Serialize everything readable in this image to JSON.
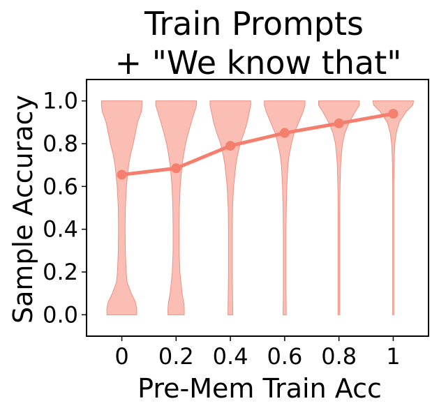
{
  "chart_data": {
    "type": "violin",
    "title": [
      "Train Prompts",
      "+ \"We know that\""
    ],
    "xlabel": "Pre-Mem Train Acc",
    "ylabel": "Sample Accuracy",
    "x_ticks": [
      "0",
      "0.2",
      "0.4",
      "0.6",
      "0.8",
      "1"
    ],
    "y_ticks": [
      "0.0",
      "0.2",
      "0.4",
      "0.6",
      "0.8",
      "1.0"
    ],
    "xlim": [
      -0.13,
      1.13
    ],
    "ylim": [
      -0.1,
      1.1
    ],
    "x": [
      0,
      0.2,
      0.4,
      0.6,
      0.8,
      1.0
    ],
    "mean_line": [
      0.655,
      0.685,
      0.79,
      0.85,
      0.895,
      0.94
    ],
    "violin_color": "#f9a89c",
    "violin_edge_color": "#f08f80",
    "line_color": "#f47f6e",
    "violins": [
      {
        "x": 0,
        "profile": [
          [
            0.0,
            0.055
          ],
          [
            0.03,
            0.055
          ],
          [
            0.06,
            0.05
          ],
          [
            0.1,
            0.035
          ],
          [
            0.15,
            0.02
          ],
          [
            0.2,
            0.016
          ],
          [
            0.3,
            0.013
          ],
          [
            0.4,
            0.012
          ],
          [
            0.5,
            0.013
          ],
          [
            0.6,
            0.017
          ],
          [
            0.7,
            0.025
          ],
          [
            0.75,
            0.032
          ],
          [
            0.8,
            0.042
          ],
          [
            0.85,
            0.05
          ],
          [
            0.9,
            0.058
          ],
          [
            0.95,
            0.072
          ],
          [
            0.98,
            0.075
          ],
          [
            1.0,
            0.075
          ]
        ]
      },
      {
        "x": 0.2,
        "profile": [
          [
            0.0,
            0.03
          ],
          [
            0.03,
            0.03
          ],
          [
            0.06,
            0.028
          ],
          [
            0.1,
            0.022
          ],
          [
            0.2,
            0.014
          ],
          [
            0.3,
            0.011
          ],
          [
            0.4,
            0.011
          ],
          [
            0.5,
            0.012
          ],
          [
            0.6,
            0.015
          ],
          [
            0.7,
            0.022
          ],
          [
            0.75,
            0.028
          ],
          [
            0.8,
            0.035
          ],
          [
            0.85,
            0.045
          ],
          [
            0.9,
            0.056
          ],
          [
            0.95,
            0.068
          ],
          [
            0.98,
            0.075
          ],
          [
            1.0,
            0.075
          ]
        ]
      },
      {
        "x": 0.4,
        "profile": [
          [
            0.0,
            0.009
          ],
          [
            0.1,
            0.008
          ],
          [
            0.2,
            0.007
          ],
          [
            0.3,
            0.007
          ],
          [
            0.4,
            0.007
          ],
          [
            0.5,
            0.008
          ],
          [
            0.6,
            0.012
          ],
          [
            0.7,
            0.02
          ],
          [
            0.75,
            0.027
          ],
          [
            0.8,
            0.036
          ],
          [
            0.85,
            0.05
          ],
          [
            0.9,
            0.062
          ],
          [
            0.95,
            0.07
          ],
          [
            0.98,
            0.075
          ],
          [
            1.0,
            0.075
          ]
        ]
      },
      {
        "x": 0.6,
        "profile": [
          [
            0.0,
            0.006
          ],
          [
            0.1,
            0.005
          ],
          [
            0.2,
            0.005
          ],
          [
            0.3,
            0.005
          ],
          [
            0.4,
            0.005
          ],
          [
            0.5,
            0.006
          ],
          [
            0.6,
            0.008
          ],
          [
            0.7,
            0.012
          ],
          [
            0.75,
            0.017
          ],
          [
            0.8,
            0.025
          ],
          [
            0.85,
            0.035
          ],
          [
            0.9,
            0.052
          ],
          [
            0.95,
            0.068
          ],
          [
            0.98,
            0.075
          ],
          [
            1.0,
            0.075
          ]
        ]
      },
      {
        "x": 0.8,
        "profile": [
          [
            0.0,
            0.003
          ],
          [
            0.2,
            0.003
          ],
          [
            0.4,
            0.003
          ],
          [
            0.5,
            0.003
          ],
          [
            0.6,
            0.004
          ],
          [
            0.7,
            0.006
          ],
          [
            0.75,
            0.009
          ],
          [
            0.8,
            0.013
          ],
          [
            0.85,
            0.022
          ],
          [
            0.9,
            0.038
          ],
          [
            0.95,
            0.06
          ],
          [
            0.98,
            0.075
          ],
          [
            1.0,
            0.075
          ]
        ]
      },
      {
        "x": 1.0,
        "profile": [
          [
            0.0,
            0.002
          ],
          [
            0.2,
            0.002
          ],
          [
            0.4,
            0.002
          ],
          [
            0.5,
            0.002
          ],
          [
            0.6,
            0.002
          ],
          [
            0.7,
            0.003
          ],
          [
            0.75,
            0.004
          ],
          [
            0.8,
            0.006
          ],
          [
            0.85,
            0.011
          ],
          [
            0.9,
            0.022
          ],
          [
            0.95,
            0.048
          ],
          [
            0.98,
            0.072
          ],
          [
            1.0,
            0.075
          ]
        ]
      }
    ]
  }
}
